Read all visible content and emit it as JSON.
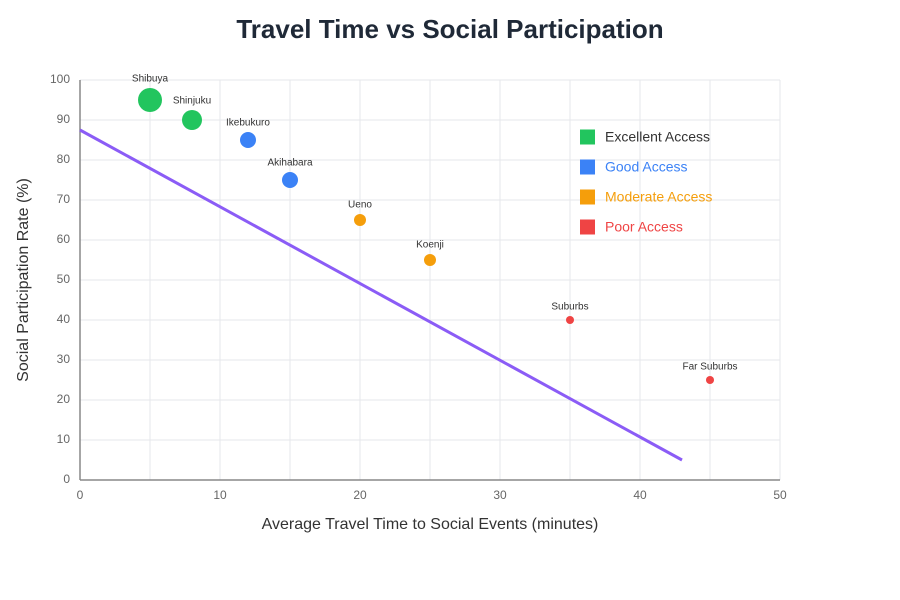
{
  "chart_data": {
    "type": "scatter",
    "title": "Travel Time vs Social Participation",
    "x_label": "Average Travel Time to Social Events (minutes)",
    "y_label": "Social Participation Rate (%)",
    "xlim": [
      0,
      50
    ],
    "ylim": [
      0,
      100
    ],
    "xticks": [
      0,
      10,
      20,
      30,
      40,
      50
    ],
    "x_minor_ticks": [
      5,
      15,
      25,
      35,
      45
    ],
    "yticks": [
      0,
      10,
      20,
      30,
      40,
      50,
      60,
      70,
      80,
      90,
      100
    ],
    "grid": true,
    "legend": "upper-right",
    "series": [
      {
        "name": "Excellent Access",
        "color": "#22c55e",
        "text_color": "#333333",
        "labels": [
          "Shibuya",
          "Shinjuku"
        ],
        "x": [
          5,
          8
        ],
        "y": [
          95,
          90
        ],
        "sizes": [
          12,
          10
        ]
      },
      {
        "name": "Good Access",
        "color": "#3b82f6",
        "text_color": "#3b82f6",
        "labels": [
          "Ikebukuro",
          "Akihabara"
        ],
        "x": [
          12,
          15
        ],
        "y": [
          85,
          75
        ],
        "sizes": [
          8,
          8
        ]
      },
      {
        "name": "Moderate Access",
        "color": "#f59e0b",
        "text_color": "#f59e0b",
        "labels": [
          "Ueno",
          "Koenji"
        ],
        "x": [
          20,
          25
        ],
        "y": [
          65,
          55
        ],
        "sizes": [
          6,
          6
        ]
      },
      {
        "name": "Poor Access",
        "color": "#ef4444",
        "text_color": "#ef4444",
        "labels": [
          "Suburbs",
          "Far Suburbs"
        ],
        "x": [
          35,
          45
        ],
        "y": [
          40,
          25
        ],
        "sizes": [
          4,
          4
        ]
      }
    ],
    "trend_line": {
      "x": [
        0,
        43
      ],
      "y": [
        87.5,
        5
      ],
      "color": "#8b5cf6"
    }
  }
}
